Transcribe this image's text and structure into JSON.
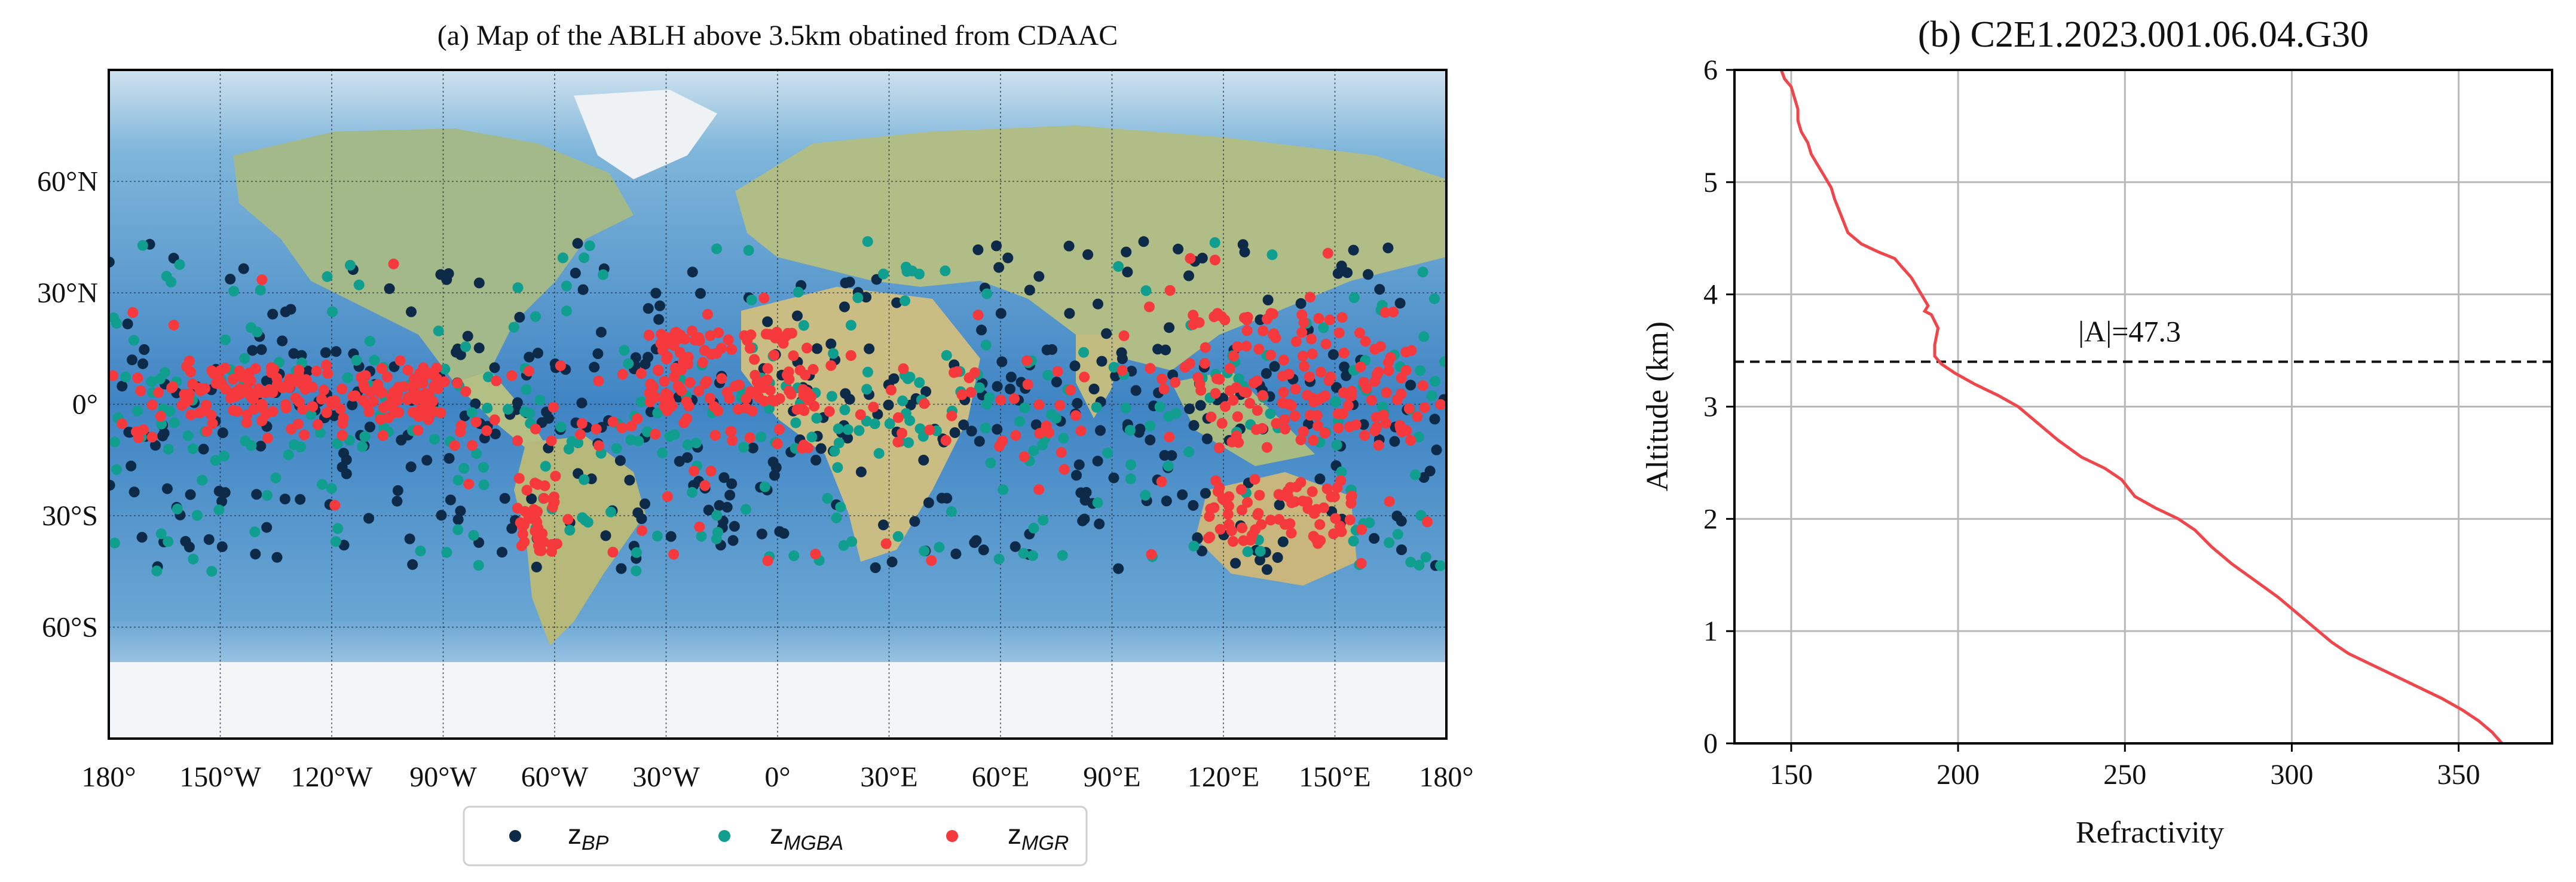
{
  "chart_data": [
    {
      "type": "scatter",
      "panel": "a",
      "title": "(a) Map of the ABLH above 3.5km obatined from CDAAC",
      "xlabel": "",
      "ylabel": "",
      "xlim": [
        -180,
        180
      ],
      "ylim": [
        -90,
        90
      ],
      "x_tick_values": [
        -180,
        -150,
        -120,
        -90,
        -60,
        -30,
        0,
        30,
        60,
        90,
        120,
        150,
        180
      ],
      "x_tick_labels": [
        "180°",
        "150°W",
        "120°W",
        "90°W",
        "60°W",
        "30°W",
        "0°",
        "30°E",
        "60°E",
        "90°E",
        "120°E",
        "150°E",
        "180°"
      ],
      "y_tick_values": [
        60,
        30,
        0,
        -30,
        -60
      ],
      "y_tick_labels": [
        "60°N",
        "30°N",
        "0°",
        "30°S",
        "60°S"
      ],
      "grid": true,
      "basemap": "world relief",
      "legend_position": "bottom",
      "legend": [
        "z_BP",
        "z_MGBA",
        "z_MGR"
      ],
      "series": [
        {
          "name": "z_BP",
          "label": "z",
          "sub": "BP",
          "color": "#0d2a48",
          "clusters": [
            {
              "lon": [
                -180,
                180
              ],
              "lat": [
                -10,
                15
              ],
              "n": 210
            },
            {
              "lon": [
                -180,
                180
              ],
              "lat": [
                -45,
                -10
              ],
              "n": 170
            },
            {
              "lon": [
                -180,
                180
              ],
              "lat": [
                15,
                44
              ],
              "n": 80
            }
          ]
        },
        {
          "name": "z_MGBA",
          "label": "z",
          "sub": "MGBA",
          "color": "#109e8e",
          "clusters": [
            {
              "lon": [
                -180,
                180
              ],
              "lat": [
                -12,
                14
              ],
              "n": 190
            },
            {
              "lon": [
                -180,
                180
              ],
              "lat": [
                -45,
                -12
              ],
              "n": 110
            },
            {
              "lon": [
                -180,
                180
              ],
              "lat": [
                14,
                44
              ],
              "n": 60
            }
          ]
        },
        {
          "name": "z_MGR",
          "label": "z",
          "sub": "MGR",
          "color": "#f5393c",
          "clusters": [
            {
              "lon": [
                -160,
                -90
              ],
              "lat": [
                -3,
                10
              ],
              "n": 140
            },
            {
              "lon": [
                -35,
                10
              ],
              "lat": [
                -2,
                20
              ],
              "n": 110
            },
            {
              "lon": [
                110,
                175
              ],
              "lat": [
                -8,
                25
              ],
              "n": 110
            },
            {
              "lon": [
                115,
                155
              ],
              "lat": [
                -38,
                -20
              ],
              "n": 70
            },
            {
              "lon": [
                -70,
                -55
              ],
              "lat": [
                -40,
                -20
              ],
              "n": 35
            },
            {
              "lon": [
                -180,
                180
              ],
              "lat": [
                -12,
                12
              ],
              "n": 160
            },
            {
              "lon": [
                -180,
                180
              ],
              "lat": [
                -45,
                42
              ],
              "n": 70
            }
          ]
        }
      ]
    },
    {
      "type": "line",
      "panel": "b",
      "title": "(b) C2E1.2023.001.06.04.G30",
      "xlabel": "Refractivity",
      "ylabel": "Altitude (km)",
      "xlim": [
        133,
        378
      ],
      "ylim": [
        0,
        6
      ],
      "x_ticks": [
        150,
        200,
        250,
        300,
        350
      ],
      "y_ticks": [
        0,
        1,
        2,
        3,
        4,
        5,
        6
      ],
      "grid": true,
      "series": [
        {
          "name": "refractivity profile",
          "color": "#f0454a",
          "x": [
            363,
            360,
            356,
            351,
            345,
            338,
            331,
            324,
            317,
            312,
            308,
            302,
            296,
            289,
            282,
            276,
            271,
            266,
            259,
            253,
            249,
            244,
            237,
            230,
            224,
            218,
            212,
            205,
            199,
            195,
            193,
            193,
            194,
            192,
            190,
            191,
            189,
            187,
            186,
            183,
            181,
            176,
            171,
            167,
            165,
            163,
            162,
            160,
            158,
            156,
            155,
            153,
            152,
            152,
            151,
            150,
            148,
            147
          ],
          "y": [
            0,
            0.1,
            0.2,
            0.3,
            0.4,
            0.5,
            0.6,
            0.7,
            0.8,
            0.9,
            1.0,
            1.15,
            1.3,
            1.45,
            1.6,
            1.75,
            1.9,
            2.0,
            2.1,
            2.2,
            2.35,
            2.45,
            2.55,
            2.7,
            2.85,
            3.0,
            3.1,
            3.2,
            3.3,
            3.38,
            3.45,
            3.55,
            3.7,
            3.82,
            3.85,
            3.9,
            4.0,
            4.1,
            4.15,
            4.25,
            4.32,
            4.38,
            4.45,
            4.55,
            4.7,
            4.85,
            4.95,
            5.05,
            5.15,
            5.25,
            5.35,
            5.45,
            5.55,
            5.65,
            5.75,
            5.85,
            5.92,
            6.0
          ]
        }
      ],
      "reference_line": {
        "y": 3.4,
        "style": "dashed",
        "color": "#111111"
      },
      "annotation": {
        "text": "|A|=47.3",
        "x": 236,
        "y": 3.58
      }
    }
  ]
}
